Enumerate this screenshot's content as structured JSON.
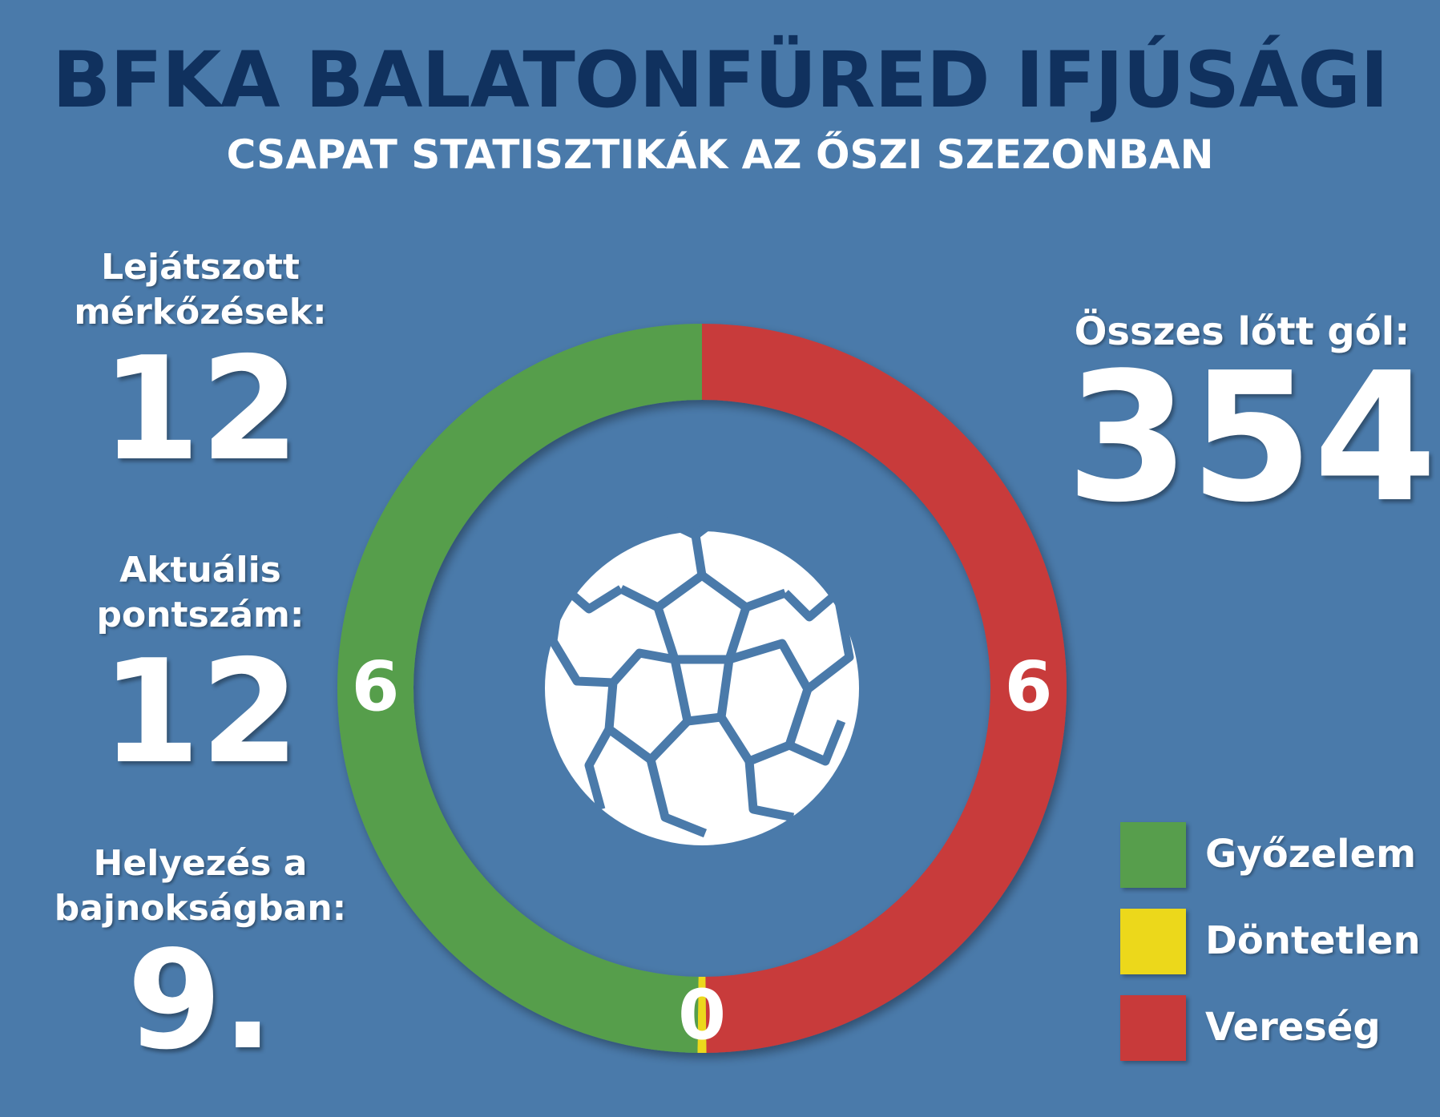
{
  "header": {
    "title": "BFKA BALATONFÜRED IFJÚSÁGI",
    "subtitle": "CSAPAT STATISZTIKÁK AZ ŐSZI SZEZONBAN"
  },
  "stats": {
    "matches": {
      "label_line1": "Lejátszott",
      "label_line2": "mérkőzések:",
      "value": "12"
    },
    "points": {
      "label_line1": "Aktuális",
      "label_line2": "pontszám:",
      "value": "12"
    },
    "rank": {
      "label_line1": "Helyezés a",
      "label_line2": "bajnokságban:",
      "value": "9."
    },
    "goals": {
      "label": "Összes lőtt gól:",
      "value": "354"
    }
  },
  "legend": [
    {
      "label": "Győzelem",
      "color": "#579e4c"
    },
    {
      "label": "Döntetlen",
      "color": "#ecd81b"
    },
    {
      "label": "Vereség",
      "color": "#c83a3a"
    }
  ],
  "chart_data": {
    "type": "pie",
    "variant": "donut",
    "categories": [
      "Győzelem",
      "Döntetlen",
      "Vereség"
    ],
    "values": [
      6,
      0,
      6
    ],
    "data_labels": [
      "6",
      "0",
      "6"
    ],
    "colors": [
      "#579e4c",
      "#ecd81b",
      "#c83a3a"
    ],
    "legend_position": "bottom-right",
    "center_icon": "soccer-ball-icon"
  }
}
